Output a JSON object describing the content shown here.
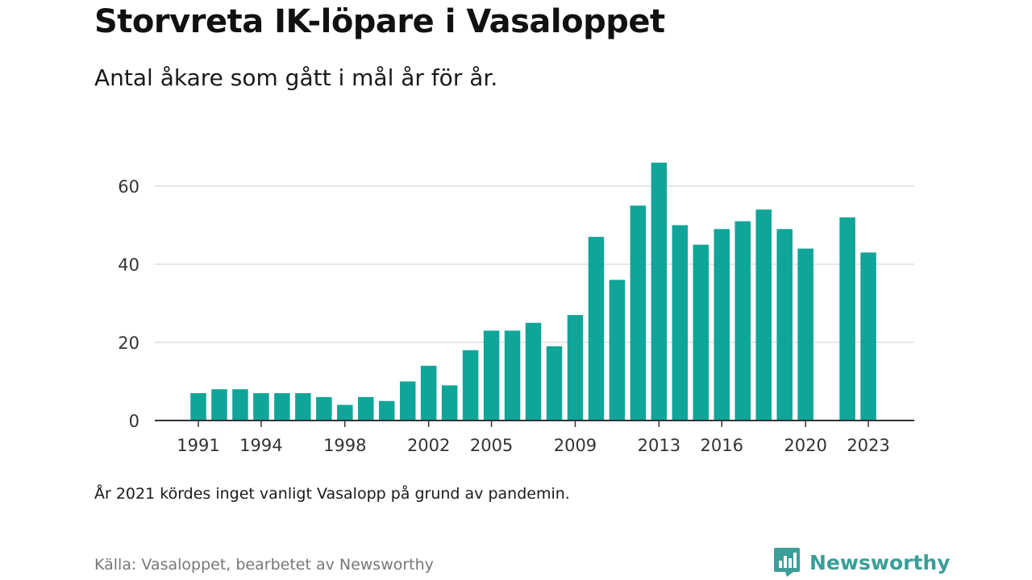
{
  "header": {
    "title": "Storvreta IK-löpare i Vasaloppet",
    "subtitle": "Antal åkare som gått i mål år för år."
  },
  "footer": {
    "note": "År 2021 kördes inget vanligt Vasalopp på grund av pandemin.",
    "source": "Källa: Vasaloppet, bearbetet av Newsworthy",
    "brand": "Newsworthy",
    "brand_icon": "newsworthy-logo-icon"
  },
  "colors": {
    "bar": "#10a599",
    "grid": "#dddddd",
    "axis": "#333333",
    "brand": "#3b9e98"
  },
  "chart_data": {
    "type": "bar",
    "title": "Storvreta IK-löpare i Vasaloppet",
    "subtitle": "Antal åkare som gått i mål år för år.",
    "xlabel": "",
    "ylabel": "",
    "ylim": [
      0,
      70
    ],
    "yticks": [
      0,
      20,
      40,
      60
    ],
    "xticks": [
      "1991",
      "1994",
      "1998",
      "2002",
      "2005",
      "2009",
      "2013",
      "2016",
      "2020",
      "2023"
    ],
    "grid": true,
    "categories": [
      "1991",
      "1992",
      "1993",
      "1994",
      "1995",
      "1996",
      "1997",
      "1998",
      "1999",
      "2000",
      "2001",
      "2002",
      "2003",
      "2004",
      "2005",
      "2006",
      "2007",
      "2008",
      "2009",
      "2010",
      "2011",
      "2012",
      "2013",
      "2014",
      "2015",
      "2016",
      "2017",
      "2018",
      "2019",
      "2020",
      "2021",
      "2022",
      "2023"
    ],
    "values": [
      7,
      8,
      8,
      7,
      7,
      7,
      6,
      4,
      6,
      5,
      10,
      14,
      9,
      18,
      23,
      23,
      25,
      19,
      27,
      47,
      36,
      55,
      66,
      50,
      45,
      49,
      51,
      54,
      49,
      44,
      null,
      52,
      43
    ]
  }
}
